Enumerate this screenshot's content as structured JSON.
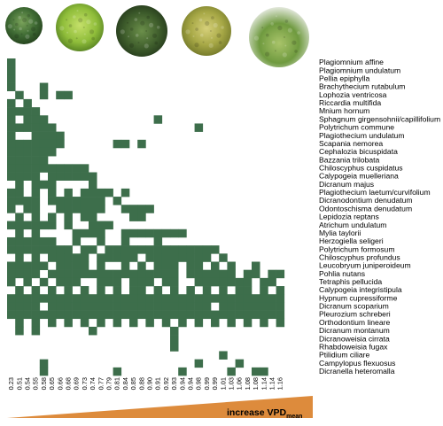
{
  "chart_data": {
    "type": "heatmap",
    "x_label": "increase VPD",
    "x_label_subscript": "mean",
    "x_ticks": [
      "0.23",
      "0.51",
      "0.54",
      "0.55",
      "0.58",
      "0.65",
      "0.66",
      "0.68",
      "0.69",
      "0.73",
      "0.74",
      "0.77",
      "0.79",
      "0.81",
      "0.84",
      "0.85",
      "0.88",
      "0.90",
      "0.91",
      "0.92",
      "0.93",
      "0.94",
      "0.94",
      "0.98",
      "0.99",
      "0.99",
      "1.01",
      "1.03",
      "1.06",
      "1.08",
      "1.08",
      "1.14",
      "1.14",
      "1.16"
    ],
    "species": [
      "Plagiomnium affine",
      "Plagiomnium undulatum",
      "Pellia epiphylla",
      "Brachythecium rutabulum",
      "Lophozia ventricosa",
      "Riccardia multifida",
      "Mnium hornum",
      "Sphagnum girgensohnii/capillifolium",
      "Polytrichum commune",
      "Plagiothecium undulatum",
      "Scapania nemorea",
      "Cephalozia bicuspidata",
      "Bazzania trilobata",
      "Chiloscyphus cuspidatus",
      "Calypogeia muelleriana",
      "Dicranum majus",
      "Plagiothecium laetum/curvifolium",
      "Dicranodontium denudatum",
      "Odontoschisma denudatum",
      "Lepidozia reptans",
      "Atrichum undulatum",
      "Mylia taylorii",
      "Herzogiella seligeri",
      "Polytrichum formosum",
      "Chiloscyphus profundus",
      "Leucobryum juniperoideum",
      "Pohlia nutans",
      "Tetraphis pellucida",
      "Calypogeia integristipula",
      "Hypnum cupressiforme",
      "Dicranum scoparium",
      "Pleurozium schreberi",
      "Orthodontium lineare",
      "Dicranum montanum",
      "Dicranoweisia cirrata",
      "Rhabdoweisia fugax",
      "Ptilidium ciliare",
      "Campylopus flexuosus",
      "Dicranella heteromalla"
    ],
    "matrix": [
      "1000000000000000000000000000000000",
      "1000000000000000000000000000000000",
      "1000000000000000000000000000000000",
      "1000100000000000000000000000000000",
      "0100101100000000000000000000000000",
      "1010000000000000000000000000000000",
      "1111000000000000000000000000000000",
      "1011100000000000001000000000000000",
      "1111110000000000000000010000000000",
      "1001111000000000000000000000000000",
      "1111111000000110100000000000000000",
      "1111110000000000000000000000000000",
      "1111100000000000000000000000000000",
      "1111111111000000000000000000000000",
      "1111011111100000000000000000000000",
      "0101110000100000000000000000000000",
      "1101010101111010000000000000000000",
      "1111011111110100000000000000000000",
      "1011001111110011110000000000000000",
      "0101010101100001100000000000000000",
      "1111110100111000000000000000000000",
      "0101000011110011111111000000000000",
      "1111110010010010001000000000000000",
      "1111111101101111111111111100000000",
      "0101011111011111011111111010000000",
      "1111101111010010101110110101001000",
      "1111011111111111111110111111011011",
      "1010101110011101110110011111110110",
      "0101010101010101101010101010110101",
      "1111111111111111111111111111111111",
      "1111011111111111111111111011111111",
      "1111111111111111111111111111111111",
      "0101010101010101010101010101010101",
      "0101000000100000000010000000000000",
      "0000000000000000000010000000000000",
      "0000000000000000000010000000000000",
      "0000000000000000000000000010000000",
      "0000100000000000000000010000100000",
      "0000100000000100000001000001001100"
    ],
    "fill_color": "#3d6e4b",
    "arrow_color": "#dd8b3c",
    "photos": [
      "moss-photo-1",
      "moss-photo-2",
      "moss-photo-3",
      "moss-photo-4",
      "moss-photo-5"
    ]
  }
}
